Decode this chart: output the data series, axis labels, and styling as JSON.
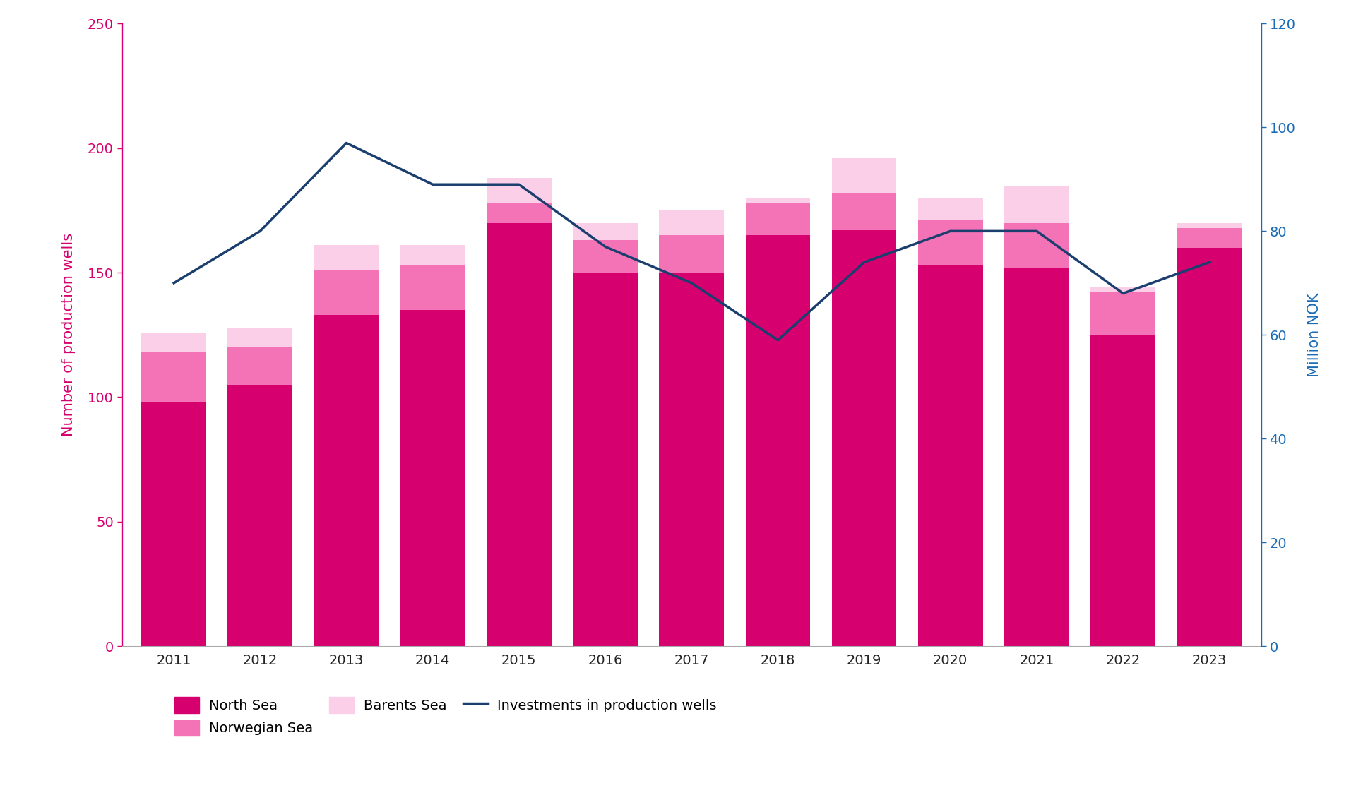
{
  "years": [
    2011,
    2012,
    2013,
    2014,
    2015,
    2016,
    2017,
    2018,
    2019,
    2020,
    2021,
    2022,
    2023
  ],
  "north_sea": [
    98,
    105,
    133,
    135,
    170,
    150,
    150,
    165,
    167,
    153,
    152,
    125,
    160
  ],
  "norwegian_sea": [
    20,
    15,
    18,
    18,
    8,
    13,
    15,
    13,
    15,
    18,
    18,
    17,
    8
  ],
  "barents_sea": [
    8,
    8,
    10,
    8,
    10,
    7,
    10,
    2,
    14,
    9,
    15,
    2,
    2
  ],
  "investments": [
    70,
    80,
    97,
    89,
    89,
    77,
    70,
    59,
    74,
    80,
    80,
    68,
    74
  ],
  "north_sea_color": "#D6006E",
  "norwegian_sea_color": "#F472B6",
  "barents_sea_color": "#FBCFE8",
  "line_color": "#1A3F6F",
  "left_axis_color": "#D6006E",
  "right_axis_color": "#1A6BB5",
  "ylim_left": [
    0,
    250
  ],
  "ylim_right": [
    0,
    120
  ],
  "yticks_left": [
    0,
    50,
    100,
    150,
    200,
    250
  ],
  "yticks_right": [
    0,
    20,
    40,
    60,
    80,
    100,
    120
  ],
  "ylabel_left": "Number of production wells",
  "ylabel_right": "Million NOK",
  "legend_labels": [
    "North Sea",
    "Norwegian Sea",
    "Barents Sea",
    "Investments in production wells"
  ],
  "background_color": "#ffffff",
  "axis_label_fontsize": 15,
  "tick_fontsize": 14,
  "legend_fontsize": 14
}
